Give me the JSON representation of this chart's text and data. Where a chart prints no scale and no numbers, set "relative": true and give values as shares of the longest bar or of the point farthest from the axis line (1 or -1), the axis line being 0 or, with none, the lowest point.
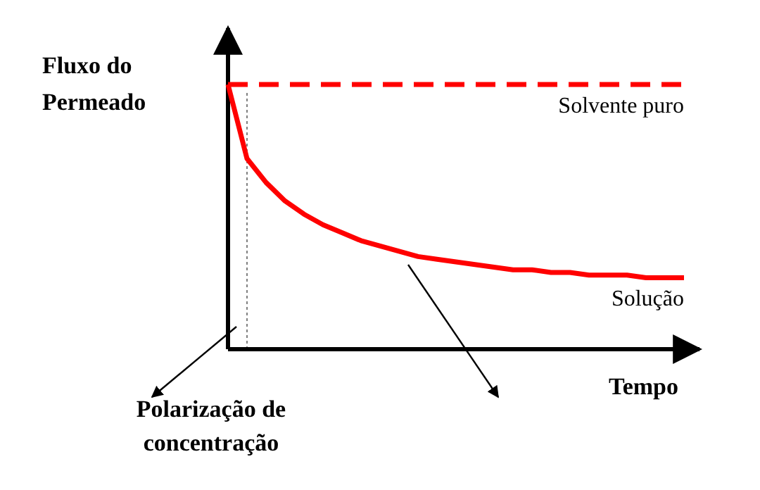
{
  "chart_data": {
    "type": "line",
    "relative": true,
    "xlabel": "Tempo",
    "ylabel": "Fluxo do\nPermeado",
    "categories": [
      null,
      null,
      null,
      null,
      null,
      null,
      null,
      null,
      null,
      null,
      null,
      null,
      null,
      null,
      null,
      null,
      null,
      null,
      null,
      null,
      null,
      null,
      null,
      null,
      null
    ],
    "series": [
      {
        "name": "Solvente puro",
        "color": "#ff0000",
        "line_style": "dashed",
        "values": [
          1,
          1,
          1,
          1,
          1,
          1,
          1,
          1,
          1,
          1,
          1,
          1,
          1,
          1,
          1,
          1,
          1,
          1,
          1,
          1,
          1,
          1,
          1,
          1,
          1
        ]
      },
      {
        "name": "Solução",
        "color": "#ff0000",
        "line_style": "solid",
        "values": [
          1,
          0.72,
          0.63,
          0.56,
          0.51,
          0.47,
          0.44,
          0.41,
          0.39,
          0.37,
          0.35,
          0.34,
          0.33,
          0.32,
          0.31,
          0.3,
          0.3,
          0.29,
          0.29,
          0.28,
          0.28,
          0.28,
          0.27,
          0.27,
          0.27
        ]
      }
    ],
    "annotations": [
      "Polarização de\nconcentração"
    ]
  }
}
